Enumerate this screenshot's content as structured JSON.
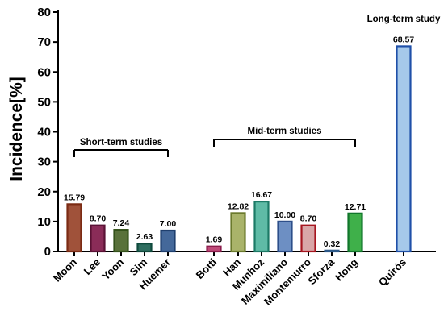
{
  "chart_data": {
    "type": "bar",
    "title": "",
    "xlabel": "",
    "ylabel": "Incidence[%]",
    "ylim": [
      0,
      80
    ],
    "yticks": [
      0,
      10,
      20,
      30,
      40,
      50,
      60,
      70,
      80
    ],
    "grid": false,
    "legend": "none",
    "categories": [
      "Moon",
      "Lee",
      "Yoon",
      "Sim",
      "Huemer",
      "Botti",
      "Han",
      "Munhoz",
      "Maximiliano",
      "Montemurro",
      "Sforza",
      "Hong",
      "Quirós"
    ],
    "values": [
      15.79,
      8.7,
      7.24,
      2.63,
      7.0,
      1.69,
      12.82,
      16.67,
      10.0,
      8.7,
      0.32,
      12.71,
      68.57
    ],
    "value_labels": [
      "15.79",
      "8.70",
      "7.24",
      "2.63",
      "7.00",
      "1.69",
      "12.82",
      "16.67",
      "10.00",
      "8.70",
      "0.32",
      "12.71",
      "68.57"
    ],
    "bar_fill_colors": [
      "#a0523a",
      "#8a2c58",
      "#59713a",
      "#2f6e60",
      "#44689a",
      "#bf4a78",
      "#a9b36a",
      "#5fbba6",
      "#6d8fc3",
      "#d9a6a8",
      "#7aa4c8",
      "#3fb04a",
      "#a6c9ea"
    ],
    "bar_edge_colors": [
      "#7b2b13",
      "#5a1235",
      "#34521a",
      "#0f4a3c",
      "#1f3f6e",
      "#8a1c4b",
      "#6b7a2d",
      "#1c7a66",
      "#2d4f8a",
      "#a6151f",
      "#2d5a8a",
      "#11762b",
      "#1f4fa8"
    ],
    "groups": [
      {
        "label": "Short-term studies",
        "from": 0,
        "to": 4
      },
      {
        "label": "Mid-term studies",
        "from": 5,
        "to": 11
      },
      {
        "label": "Long-term study",
        "from": 12,
        "to": 12
      }
    ]
  }
}
